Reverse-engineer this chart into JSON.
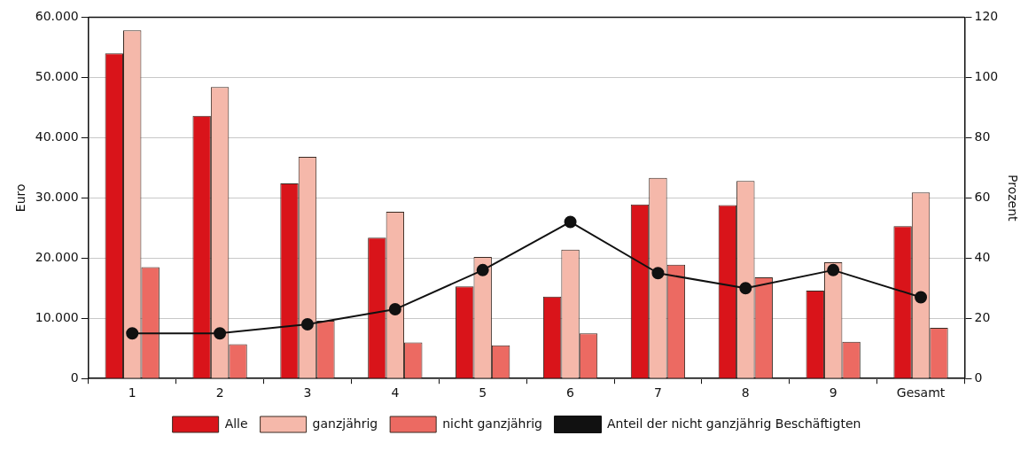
{
  "chart_data": {
    "type": "bar",
    "xlabel": null,
    "ylabel": "Euro",
    "y2label": "Prozent",
    "categories": [
      "1",
      "2",
      "3",
      "4",
      "5",
      "6",
      "7",
      "8",
      "9",
      "Gesamt"
    ],
    "series": [
      {
        "name": "Alle",
        "color": "#d9141a",
        "values": [
          54000,
          43600,
          32400,
          23400,
          15300,
          13600,
          28900,
          28800,
          14600,
          25300
        ]
      },
      {
        "name": "ganzjährig",
        "color": "#f5b8aa",
        "values": [
          57800,
          48400,
          36800,
          27700,
          20200,
          21400,
          33300,
          32800,
          19300,
          30900
        ]
      },
      {
        "name": "nicht ganzjährig",
        "color": "#ec6a62",
        "values": [
          18500,
          5700,
          9600,
          6000,
          5500,
          7500,
          18900,
          16800,
          6100,
          8400
        ]
      },
      {
        "name": "Anteil der nicht ganzjährig Beschäftigten",
        "type": "line",
        "axis": "y2",
        "color": "#111111",
        "marker": "circle",
        "values": [
          15,
          15,
          18,
          23,
          36,
          52,
          35,
          30,
          36,
          27
        ]
      }
    ],
    "ylim": [
      0,
      60000
    ],
    "yticks": [
      {
        "value": 0,
        "label": "0"
      },
      {
        "value": 10000,
        "label": "10.000"
      },
      {
        "value": 20000,
        "label": "20.000"
      },
      {
        "value": 30000,
        "label": "30.000"
      },
      {
        "value": 40000,
        "label": "40.000"
      },
      {
        "value": 50000,
        "label": "50.000"
      },
      {
        "value": 60000,
        "label": "60.000"
      }
    ],
    "y2lim": [
      0,
      120
    ],
    "y2ticks": [
      0,
      20,
      40,
      60,
      80,
      100,
      120
    ],
    "grid": "y",
    "legend": "bottom"
  }
}
